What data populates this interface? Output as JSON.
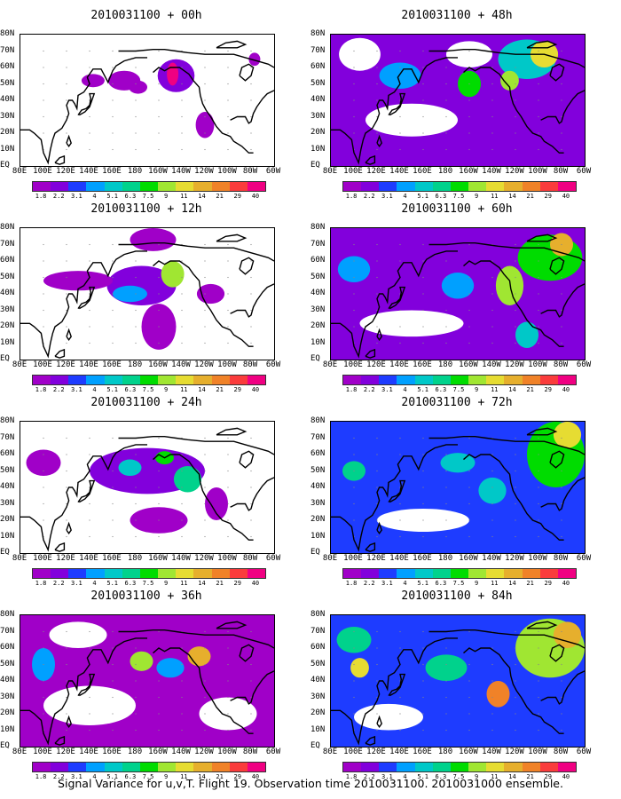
{
  "caption": "Signal Variance for u,v,T. Flight 19. Observation time 2010031100. 2010031000 ensemble.",
  "colors": [
    "#a000c8",
    "#8200dc",
    "#1e3cff",
    "#00a0ff",
    "#00c8c8",
    "#00d28c",
    "#00dc00",
    "#a0e632",
    "#e6dc32",
    "#e6af2d",
    "#f08228",
    "#fa3c3c",
    "#f00082"
  ],
  "chart_data": [
    {
      "type": "heatmap",
      "title": "2010031100 + 00h",
      "xlabel": "",
      "ylabel": "",
      "x_ticks": [
        "80E",
        "100E",
        "120E",
        "140E",
        "160E",
        "180",
        "160W",
        "140W",
        "120W",
        "100W",
        "80W",
        "60W"
      ],
      "y_ticks": [
        "EQ",
        "10N",
        "20N",
        "30N",
        "40N",
        "50N",
        "60N",
        "70N",
        "80N"
      ],
      "xlim": [
        80,
        300
      ],
      "ylim": [
        0,
        80
      ],
      "colorbar_ticks": [
        "1.8",
        "2.2",
        "3.1",
        "4",
        "5.1",
        "6.3",
        "7.5",
        "9",
        "11",
        "14",
        "21",
        "29",
        "40"
      ],
      "blobs": [
        {
          "lon": 215,
          "lat": 55,
          "rx": 16,
          "ry": 10,
          "level": 1
        },
        {
          "lon": 212,
          "lat": 56,
          "rx": 5,
          "ry": 7,
          "level": 12
        },
        {
          "lon": 170,
          "lat": 52,
          "rx": 14,
          "ry": 6,
          "level": 0
        },
        {
          "lon": 143,
          "lat": 52,
          "rx": 10,
          "ry": 4,
          "level": 0
        },
        {
          "lon": 182,
          "lat": 48,
          "rx": 8,
          "ry": 4,
          "level": 0
        },
        {
          "lon": 240,
          "lat": 25,
          "rx": 8,
          "ry": 8,
          "level": 0
        },
        {
          "lon": 283,
          "lat": 65,
          "rx": 5,
          "ry": 4,
          "level": 0
        }
      ]
    },
    {
      "type": "heatmap",
      "title": "2010031100 + 48h",
      "xlabel": "",
      "ylabel": "",
      "x_ticks": [
        "80E",
        "100E",
        "120E",
        "140E",
        "160E",
        "180",
        "160W",
        "140W",
        "120W",
        "100W",
        "80W",
        "60W"
      ],
      "y_ticks": [
        "EQ",
        "10N",
        "20N",
        "30N",
        "40N",
        "50N",
        "60N",
        "70N",
        "80N"
      ],
      "xlim": [
        80,
        300
      ],
      "ylim": [
        0,
        80
      ],
      "colorbar_ticks": [
        "1.8",
        "2.2",
        "3.1",
        "4",
        "5.1",
        "6.3",
        "7.5",
        "9",
        "11",
        "14",
        "21",
        "29",
        "40"
      ],
      "background_level": 1,
      "blobs": [
        {
          "lon": 150,
          "lat": 28,
          "rx": 40,
          "ry": 10,
          "level": -1
        },
        {
          "lon": 105,
          "lat": 68,
          "rx": 18,
          "ry": 10,
          "level": -1
        },
        {
          "lon": 200,
          "lat": 68,
          "rx": 20,
          "ry": 8,
          "level": -1
        },
        {
          "lon": 250,
          "lat": 65,
          "rx": 25,
          "ry": 12,
          "level": 4
        },
        {
          "lon": 265,
          "lat": 68,
          "rx": 12,
          "ry": 8,
          "level": 8
        },
        {
          "lon": 200,
          "lat": 50,
          "rx": 10,
          "ry": 8,
          "level": 6
        },
        {
          "lon": 235,
          "lat": 52,
          "rx": 8,
          "ry": 6,
          "level": 7
        },
        {
          "lon": 140,
          "lat": 55,
          "rx": 18,
          "ry": 8,
          "level": 3
        }
      ]
    },
    {
      "type": "heatmap",
      "title": "2010031100 + 12h",
      "xlabel": "",
      "ylabel": "",
      "x_ticks": [
        "80E",
        "100E",
        "120E",
        "140E",
        "160E",
        "180",
        "160W",
        "140W",
        "120W",
        "100W",
        "80W",
        "60W"
      ],
      "y_ticks": [
        "EQ",
        "10N",
        "20N",
        "30N",
        "40N",
        "50N",
        "60N",
        "70N",
        "80N"
      ],
      "xlim": [
        80,
        300
      ],
      "ylim": [
        0,
        80
      ],
      "colorbar_ticks": [
        "1.8",
        "2.2",
        "3.1",
        "4",
        "5.1",
        "6.3",
        "7.5",
        "9",
        "11",
        "14",
        "21",
        "29",
        "40"
      ],
      "blobs": [
        {
          "lon": 185,
          "lat": 45,
          "rx": 30,
          "ry": 12,
          "level": 1
        },
        {
          "lon": 212,
          "lat": 52,
          "rx": 10,
          "ry": 8,
          "level": 7
        },
        {
          "lon": 130,
          "lat": 48,
          "rx": 30,
          "ry": 6,
          "level": 0
        },
        {
          "lon": 175,
          "lat": 40,
          "rx": 15,
          "ry": 5,
          "level": 3
        },
        {
          "lon": 200,
          "lat": 20,
          "rx": 15,
          "ry": 14,
          "level": 0
        },
        {
          "lon": 245,
          "lat": 40,
          "rx": 12,
          "ry": 6,
          "level": 0
        },
        {
          "lon": 195,
          "lat": 73,
          "rx": 20,
          "ry": 7,
          "level": 0
        }
      ]
    },
    {
      "type": "heatmap",
      "title": "2010031100 + 60h",
      "xlabel": "",
      "ylabel": "",
      "x_ticks": [
        "80E",
        "100E",
        "120E",
        "140E",
        "160E",
        "180",
        "160W",
        "140W",
        "120W",
        "100W",
        "80W",
        "60W"
      ],
      "y_ticks": [
        "EQ",
        "10N",
        "20N",
        "30N",
        "40N",
        "50N",
        "60N",
        "70N",
        "80N"
      ],
      "xlim": [
        80,
        300
      ],
      "ylim": [
        0,
        80
      ],
      "colorbar_ticks": [
        "1.8",
        "2.2",
        "3.1",
        "4",
        "5.1",
        "6.3",
        "7.5",
        "9",
        "11",
        "14",
        "21",
        "29",
        "40"
      ],
      "background_level": 1,
      "blobs": [
        {
          "lon": 150,
          "lat": 22,
          "rx": 45,
          "ry": 8,
          "level": -1
        },
        {
          "lon": 270,
          "lat": 62,
          "rx": 28,
          "ry": 14,
          "level": 6
        },
        {
          "lon": 280,
          "lat": 70,
          "rx": 10,
          "ry": 7,
          "level": 9
        },
        {
          "lon": 235,
          "lat": 45,
          "rx": 12,
          "ry": 12,
          "level": 7
        },
        {
          "lon": 100,
          "lat": 55,
          "rx": 14,
          "ry": 8,
          "level": 3
        },
        {
          "lon": 190,
          "lat": 45,
          "rx": 14,
          "ry": 8,
          "level": 3
        },
        {
          "lon": 250,
          "lat": 15,
          "rx": 10,
          "ry": 8,
          "level": 4
        }
      ]
    },
    {
      "type": "heatmap",
      "title": "2010031100 + 24h",
      "xlabel": "",
      "ylabel": "",
      "x_ticks": [
        "80E",
        "100E",
        "120E",
        "140E",
        "160E",
        "180",
        "160W",
        "140W",
        "120W",
        "100W",
        "80W",
        "60W"
      ],
      "y_ticks": [
        "EQ",
        "10N",
        "20N",
        "30N",
        "40N",
        "50N",
        "60N",
        "70N",
        "80N"
      ],
      "xlim": [
        80,
        300
      ],
      "ylim": [
        0,
        80
      ],
      "colorbar_ticks": [
        "1.8",
        "2.2",
        "3.1",
        "4",
        "5.1",
        "6.3",
        "7.5",
        "9",
        "11",
        "14",
        "21",
        "29",
        "40"
      ],
      "blobs": [
        {
          "lon": 190,
          "lat": 50,
          "rx": 50,
          "ry": 14,
          "level": 1
        },
        {
          "lon": 225,
          "lat": 45,
          "rx": 12,
          "ry": 8,
          "level": 5
        },
        {
          "lon": 175,
          "lat": 52,
          "rx": 10,
          "ry": 5,
          "level": 4
        },
        {
          "lon": 205,
          "lat": 58,
          "rx": 8,
          "ry": 4,
          "level": 6
        },
        {
          "lon": 100,
          "lat": 55,
          "rx": 15,
          "ry": 8,
          "level": 0
        },
        {
          "lon": 200,
          "lat": 20,
          "rx": 25,
          "ry": 8,
          "level": 0
        },
        {
          "lon": 250,
          "lat": 30,
          "rx": 10,
          "ry": 10,
          "level": 0
        }
      ]
    },
    {
      "type": "heatmap",
      "title": "2010031100 + 72h",
      "xlabel": "",
      "ylabel": "",
      "x_ticks": [
        "80E",
        "100E",
        "120E",
        "140E",
        "160E",
        "180",
        "160W",
        "140W",
        "120W",
        "100W",
        "80W",
        "60W"
      ],
      "y_ticks": [
        "EQ",
        "10N",
        "20N",
        "30N",
        "40N",
        "50N",
        "60N",
        "70N",
        "80N"
      ],
      "xlim": [
        80,
        300
      ],
      "ylim": [
        0,
        80
      ],
      "background_level": 2,
      "colorbar_ticks": [
        "1.8",
        "2.2",
        "3.1",
        "4",
        "5.1",
        "6.3",
        "7.5",
        "9",
        "11",
        "14",
        "21",
        "29",
        "40"
      ],
      "blobs": [
        {
          "lon": 160,
          "lat": 20,
          "rx": 40,
          "ry": 7,
          "level": -1
        },
        {
          "lon": 275,
          "lat": 60,
          "rx": 25,
          "ry": 20,
          "level": 6
        },
        {
          "lon": 285,
          "lat": 72,
          "rx": 12,
          "ry": 8,
          "level": 8
        },
        {
          "lon": 100,
          "lat": 50,
          "rx": 10,
          "ry": 6,
          "level": 5
        },
        {
          "lon": 190,
          "lat": 55,
          "rx": 15,
          "ry": 6,
          "level": 4
        },
        {
          "lon": 220,
          "lat": 38,
          "rx": 12,
          "ry": 8,
          "level": 4
        }
      ]
    },
    {
      "type": "heatmap",
      "title": "2010031100 + 36h",
      "xlabel": "",
      "ylabel": "",
      "x_ticks": [
        "80E",
        "100E",
        "120E",
        "140E",
        "160E",
        "180",
        "160W",
        "140W",
        "120W",
        "100W",
        "80W",
        "60W"
      ],
      "y_ticks": [
        "EQ",
        "10N",
        "20N",
        "30N",
        "40N",
        "50N",
        "60N",
        "70N",
        "80N"
      ],
      "xlim": [
        80,
        300
      ],
      "ylim": [
        0,
        80
      ],
      "colorbar_ticks": [
        "1.8",
        "2.2",
        "3.1",
        "4",
        "5.1",
        "6.3",
        "7.5",
        "9",
        "11",
        "14",
        "21",
        "29",
        "40"
      ],
      "background_level": 0,
      "blobs": [
        {
          "lon": 140,
          "lat": 25,
          "rx": 40,
          "ry": 12,
          "level": -1
        },
        {
          "lon": 130,
          "lat": 68,
          "rx": 25,
          "ry": 8,
          "level": -1
        },
        {
          "lon": 260,
          "lat": 20,
          "rx": 25,
          "ry": 10,
          "level": -1
        },
        {
          "lon": 235,
          "lat": 55,
          "rx": 10,
          "ry": 6,
          "level": 9
        },
        {
          "lon": 185,
          "lat": 52,
          "rx": 10,
          "ry": 6,
          "level": 7
        },
        {
          "lon": 100,
          "lat": 50,
          "rx": 10,
          "ry": 10,
          "level": 3
        },
        {
          "lon": 210,
          "lat": 48,
          "rx": 12,
          "ry": 6,
          "level": 3
        }
      ]
    },
    {
      "type": "heatmap",
      "title": "2010031100 + 84h",
      "xlabel": "",
      "ylabel": "",
      "x_ticks": [
        "80E",
        "100E",
        "120E",
        "140E",
        "160E",
        "180",
        "160W",
        "140W",
        "120W",
        "100W",
        "80W",
        "60W"
      ],
      "y_ticks": [
        "EQ",
        "10N",
        "20N",
        "30N",
        "40N",
        "50N",
        "60N",
        "70N",
        "80N"
      ],
      "xlim": [
        80,
        300
      ],
      "ylim": [
        0,
        80
      ],
      "colorbar_ticks": [
        "1.8",
        "2.2",
        "3.1",
        "4",
        "5.1",
        "6.3",
        "7.5",
        "9",
        "11",
        "14",
        "21",
        "29",
        "40"
      ],
      "background_level": 2,
      "blobs": [
        {
          "lon": 130,
          "lat": 18,
          "rx": 30,
          "ry": 8,
          "level": -1
        },
        {
          "lon": 270,
          "lat": 60,
          "rx": 30,
          "ry": 18,
          "level": 7
        },
        {
          "lon": 285,
          "lat": 68,
          "rx": 12,
          "ry": 8,
          "level": 9
        },
        {
          "lon": 100,
          "lat": 65,
          "rx": 15,
          "ry": 8,
          "level": 5
        },
        {
          "lon": 105,
          "lat": 48,
          "rx": 8,
          "ry": 6,
          "level": 8
        },
        {
          "lon": 225,
          "lat": 32,
          "rx": 10,
          "ry": 8,
          "level": 10
        },
        {
          "lon": 180,
          "lat": 48,
          "rx": 18,
          "ry": 8,
          "level": 5
        }
      ]
    }
  ]
}
